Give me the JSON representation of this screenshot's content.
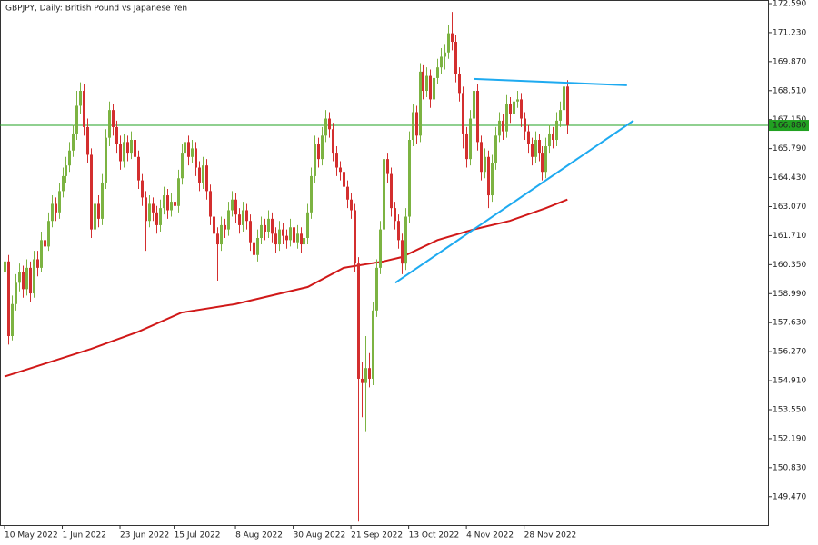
{
  "chart_data": {
    "type": "candlestick",
    "title": "GBPJPY, Daily:  British Pound vs Japanese Yen",
    "up_color": "#7cb342",
    "down_color": "#d32f2f",
    "xlim": [
      -1.26,
      211.6
    ],
    "ylim": [
      148.14,
      172.76
    ],
    "yticks": [
      {
        "value": 172.59,
        "label": "172.590"
      },
      {
        "value": 171.23,
        "label": "171.230"
      },
      {
        "value": 169.87,
        "label": "169.870"
      },
      {
        "value": 168.51,
        "label": "168.510"
      },
      {
        "value": 167.15,
        "label": "167.150"
      },
      {
        "value": 165.79,
        "label": "165.790"
      },
      {
        "value": 164.43,
        "label": "164.430"
      },
      {
        "value": 163.07,
        "label": "163.070"
      },
      {
        "value": 161.71,
        "label": "161.710"
      },
      {
        "value": 160.35,
        "label": "160.350"
      },
      {
        "value": 158.99,
        "label": "158.990"
      },
      {
        "value": 157.63,
        "label": "157.630"
      },
      {
        "value": 156.27,
        "label": "156.270"
      },
      {
        "value": 154.91,
        "label": "154.910"
      },
      {
        "value": 153.55,
        "label": "153.550"
      },
      {
        "value": 152.19,
        "label": "152.190"
      },
      {
        "value": 150.83,
        "label": "150.830"
      },
      {
        "value": 149.47,
        "label": "149.470"
      }
    ],
    "xticks": [
      {
        "value": 0,
        "label": "10 May 2022"
      },
      {
        "value": 16,
        "label": "1 Jun 2022"
      },
      {
        "value": 32,
        "label": "23 Jun 2022"
      },
      {
        "value": 47,
        "label": "15 Jul 2022"
      },
      {
        "value": 64,
        "label": "8 Aug 2022"
      },
      {
        "value": 80,
        "label": "30 Aug 2022"
      },
      {
        "value": 96,
        "label": "21 Sep 2022"
      },
      {
        "value": 112,
        "label": "13 Oct 2022"
      },
      {
        "value": 128,
        "label": "4 Nov 2022"
      },
      {
        "value": 144,
        "label": "28 Nov 2022"
      }
    ],
    "ohlc": [
      [
        160.0,
        161.0,
        159.6,
        160.5
      ],
      [
        160.5,
        160.8,
        156.6,
        157.0
      ],
      [
        157.0,
        158.9,
        156.8,
        158.5
      ],
      [
        158.5,
        159.9,
        158.2,
        159.5
      ],
      [
        159.5,
        160.4,
        159.1,
        160.0
      ],
      [
        160.0,
        160.3,
        158.8,
        159.2
      ],
      [
        159.2,
        160.6,
        158.9,
        160.2
      ],
      [
        160.2,
        160.5,
        158.6,
        159.0
      ],
      [
        159.0,
        161.0,
        158.8,
        160.6
      ],
      [
        160.6,
        161.0,
        159.8,
        160.2
      ],
      [
        160.2,
        161.9,
        160.0,
        161.5
      ],
      [
        161.5,
        161.9,
        160.8,
        161.2
      ],
      [
        161.2,
        162.8,
        161.0,
        162.4
      ],
      [
        162.4,
        163.6,
        162.1,
        163.2
      ],
      [
        163.2,
        163.5,
        162.4,
        162.8
      ],
      [
        162.8,
        164.2,
        162.5,
        163.8
      ],
      [
        163.8,
        164.9,
        163.5,
        164.5
      ],
      [
        164.5,
        165.4,
        164.2,
        165.0
      ],
      [
        165.0,
        166.1,
        164.7,
        165.7
      ],
      [
        165.7,
        166.9,
        165.4,
        166.5
      ],
      [
        166.5,
        168.5,
        166.2,
        167.8
      ],
      [
        167.8,
        168.9,
        167.4,
        168.5
      ],
      [
        168.5,
        168.8,
        166.4,
        166.8
      ],
      [
        166.8,
        167.2,
        165.1,
        165.5
      ],
      [
        165.5,
        165.8,
        161.6,
        162.0
      ],
      [
        162.0,
        163.6,
        160.2,
        163.2
      ],
      [
        163.2,
        163.6,
        162.1,
        162.5
      ],
      [
        162.5,
        164.6,
        162.2,
        164.2
      ],
      [
        164.2,
        166.7,
        163.9,
        166.3
      ],
      [
        166.3,
        168.0,
        165.9,
        167.6
      ],
      [
        167.6,
        167.9,
        166.4,
        166.8
      ],
      [
        166.8,
        167.1,
        165.6,
        166.0
      ],
      [
        166.0,
        166.4,
        164.8,
        165.2
      ],
      [
        165.2,
        166.5,
        164.9,
        166.1
      ],
      [
        166.1,
        166.4,
        165.2,
        165.6
      ],
      [
        165.6,
        166.6,
        165.3,
        166.2
      ],
      [
        166.2,
        166.5,
        165.0,
        165.4
      ],
      [
        165.4,
        165.7,
        163.9,
        164.3
      ],
      [
        164.3,
        164.6,
        163.1,
        163.5
      ],
      [
        163.5,
        163.8,
        161.0,
        162.4
      ],
      [
        162.4,
        163.6,
        162.1,
        163.2
      ],
      [
        163.2,
        163.5,
        162.4,
        162.8
      ],
      [
        162.8,
        163.1,
        161.8,
        162.2
      ],
      [
        162.2,
        163.4,
        161.9,
        163.0
      ],
      [
        163.0,
        164.0,
        162.7,
        163.6
      ],
      [
        163.6,
        163.9,
        162.5,
        162.9
      ],
      [
        162.9,
        163.7,
        162.6,
        163.3
      ],
      [
        163.3,
        163.6,
        162.7,
        163.1
      ],
      [
        163.1,
        164.8,
        162.8,
        164.4
      ],
      [
        164.4,
        166.0,
        164.1,
        165.6
      ],
      [
        165.6,
        166.5,
        165.2,
        166.1
      ],
      [
        166.1,
        166.4,
        165.0,
        165.4
      ],
      [
        165.4,
        166.2,
        165.1,
        165.8
      ],
      [
        165.8,
        166.1,
        164.5,
        164.9
      ],
      [
        164.9,
        165.2,
        163.8,
        164.2
      ],
      [
        164.2,
        165.4,
        163.9,
        165.0
      ],
      [
        165.0,
        165.3,
        163.4,
        163.8
      ],
      [
        163.8,
        164.1,
        162.2,
        162.6
      ],
      [
        162.6,
        162.9,
        161.4,
        161.8
      ],
      [
        161.8,
        162.1,
        159.6,
        161.3
      ],
      [
        161.3,
        162.6,
        161.0,
        162.2
      ],
      [
        162.2,
        162.5,
        161.6,
        162.0
      ],
      [
        162.0,
        163.3,
        161.7,
        162.9
      ],
      [
        162.9,
        163.8,
        162.6,
        163.4
      ],
      [
        163.4,
        163.7,
        162.3,
        162.7
      ],
      [
        162.7,
        163.0,
        161.8,
        162.2
      ],
      [
        162.2,
        163.3,
        161.9,
        162.9
      ],
      [
        162.9,
        163.2,
        162.0,
        162.4
      ],
      [
        162.4,
        162.7,
        161.0,
        161.4
      ],
      [
        161.4,
        161.7,
        160.4,
        160.8
      ],
      [
        160.8,
        162.0,
        160.5,
        161.6
      ],
      [
        161.6,
        162.6,
        161.3,
        162.2
      ],
      [
        162.2,
        162.5,
        161.5,
        161.9
      ],
      [
        161.9,
        162.9,
        161.6,
        162.5
      ],
      [
        162.5,
        162.8,
        161.4,
        161.8
      ],
      [
        161.8,
        162.1,
        160.9,
        161.3
      ],
      [
        161.3,
        162.4,
        161.0,
        162.0
      ],
      [
        162.0,
        162.3,
        161.3,
        161.7
      ],
      [
        161.7,
        162.0,
        161.1,
        161.5
      ],
      [
        161.5,
        162.5,
        161.2,
        162.1
      ],
      [
        162.1,
        162.4,
        161.0,
        161.4
      ],
      [
        161.4,
        162.2,
        161.1,
        161.8
      ],
      [
        161.8,
        162.1,
        160.9,
        161.3
      ],
      [
        161.3,
        162.0,
        161.0,
        161.6
      ],
      [
        161.6,
        163.2,
        161.3,
        162.8
      ],
      [
        162.8,
        164.9,
        162.5,
        164.5
      ],
      [
        164.5,
        166.4,
        164.2,
        166.0
      ],
      [
        166.0,
        166.3,
        164.9,
        165.3
      ],
      [
        165.3,
        166.8,
        165.0,
        166.4
      ],
      [
        166.4,
        167.6,
        166.1,
        167.2
      ],
      [
        167.2,
        167.5,
        166.3,
        166.7
      ],
      [
        166.7,
        167.0,
        165.2,
        165.6
      ],
      [
        165.6,
        165.9,
        164.5,
        164.9
      ],
      [
        164.9,
        165.2,
        164.3,
        164.7
      ],
      [
        164.7,
        165.0,
        163.6,
        164.0
      ],
      [
        164.0,
        164.3,
        163.0,
        163.4
      ],
      [
        163.4,
        163.7,
        162.5,
        162.9
      ],
      [
        162.9,
        163.2,
        160.0,
        160.4
      ],
      [
        160.4,
        160.7,
        148.3,
        155.0
      ],
      [
        155.0,
        155.8,
        153.2,
        154.8
      ],
      [
        154.8,
        157.0,
        152.5,
        155.5
      ],
      [
        155.5,
        156.2,
        154.6,
        155.0
      ],
      [
        155.0,
        158.6,
        154.7,
        158.2
      ],
      [
        158.2,
        160.6,
        157.9,
        160.2
      ],
      [
        160.2,
        162.4,
        159.9,
        162.0
      ],
      [
        162.0,
        165.7,
        161.7,
        165.3
      ],
      [
        165.3,
        165.6,
        164.2,
        164.6
      ],
      [
        164.6,
        164.9,
        162.6,
        163.0
      ],
      [
        163.0,
        163.3,
        162.0,
        162.4
      ],
      [
        162.4,
        162.7,
        161.1,
        161.5
      ],
      [
        161.5,
        161.8,
        159.9,
        160.4
      ],
      [
        160.4,
        163.0,
        160.1,
        162.6
      ],
      [
        162.6,
        166.6,
        162.3,
        166.2
      ],
      [
        166.2,
        167.9,
        165.9,
        167.5
      ],
      [
        167.5,
        167.8,
        166.0,
        166.4
      ],
      [
        166.4,
        169.8,
        166.1,
        169.4
      ],
      [
        169.4,
        169.7,
        168.1,
        168.5
      ],
      [
        168.5,
        169.6,
        168.2,
        169.2
      ],
      [
        169.2,
        169.5,
        167.7,
        168.1
      ],
      [
        168.1,
        169.5,
        167.8,
        169.1
      ],
      [
        169.1,
        170.0,
        168.8,
        169.6
      ],
      [
        169.6,
        170.5,
        169.3,
        170.1
      ],
      [
        170.1,
        170.7,
        169.5,
        170.3
      ],
      [
        170.3,
        171.6,
        170.0,
        171.2
      ],
      [
        171.2,
        172.2,
        170.4,
        170.8
      ],
      [
        170.8,
        171.1,
        168.9,
        169.3
      ],
      [
        169.3,
        169.6,
        168.0,
        168.4
      ],
      [
        168.4,
        168.7,
        165.8,
        166.5
      ],
      [
        166.5,
        166.8,
        164.9,
        165.3
      ],
      [
        165.3,
        167.6,
        165.0,
        167.2
      ],
      [
        167.2,
        169.0,
        166.9,
        168.5
      ],
      [
        168.5,
        168.8,
        165.7,
        166.1
      ],
      [
        166.1,
        166.4,
        164.3,
        164.7
      ],
      [
        164.7,
        165.8,
        164.4,
        165.4
      ],
      [
        165.4,
        165.7,
        163.0,
        163.6
      ],
      [
        163.6,
        165.5,
        163.3,
        165.1
      ],
      [
        165.1,
        166.8,
        164.8,
        166.4
      ],
      [
        166.4,
        167.5,
        166.1,
        167.1
      ],
      [
        167.1,
        167.4,
        166.2,
        166.6
      ],
      [
        166.6,
        168.3,
        166.3,
        167.9
      ],
      [
        167.9,
        168.2,
        167.0,
        167.4
      ],
      [
        167.4,
        168.4,
        167.1,
        168.0
      ],
      [
        168.0,
        168.5,
        167.7,
        168.1
      ],
      [
        168.1,
        168.4,
        166.8,
        167.2
      ],
      [
        167.2,
        167.5,
        166.2,
        166.6
      ],
      [
        166.6,
        166.9,
        165.6,
        166.0
      ],
      [
        166.0,
        166.3,
        165.0,
        165.4
      ],
      [
        165.4,
        166.6,
        165.1,
        166.2
      ],
      [
        166.2,
        166.5,
        165.2,
        165.6
      ],
      [
        165.6,
        165.9,
        164.3,
        164.7
      ],
      [
        164.7,
        166.3,
        164.4,
        165.9
      ],
      [
        165.9,
        166.9,
        165.6,
        166.5
      ],
      [
        166.5,
        166.8,
        165.8,
        166.2
      ],
      [
        166.2,
        167.5,
        165.9,
        167.1
      ],
      [
        167.1,
        168.0,
        166.8,
        167.6
      ],
      [
        167.6,
        169.4,
        167.3,
        168.7
      ],
      [
        168.7,
        169.0,
        166.5,
        166.88
      ]
    ],
    "moving_average": {
      "color": "#d01818",
      "x": [
        0,
        24,
        37,
        49,
        64,
        74,
        84,
        94,
        105,
        110,
        120,
        130,
        140,
        150,
        156
      ],
      "values": [
        155.1,
        156.4,
        157.2,
        158.1,
        158.5,
        158.9,
        159.3,
        160.2,
        160.5,
        160.7,
        161.5,
        162.0,
        162.4,
        163.0,
        163.4
      ]
    },
    "trendlines": [
      {
        "color": "#1eaaf0",
        "x": [
          108.3,
          174.3
        ],
        "values": [
          159.5,
          167.1
        ]
      },
      {
        "color": "#1eaaf0",
        "x": [
          130,
          172.5
        ],
        "values": [
          169.06,
          168.76
        ]
      }
    ],
    "price_line": {
      "value": 166.88,
      "label": "166.880",
      "color": "#21a121"
    }
  }
}
